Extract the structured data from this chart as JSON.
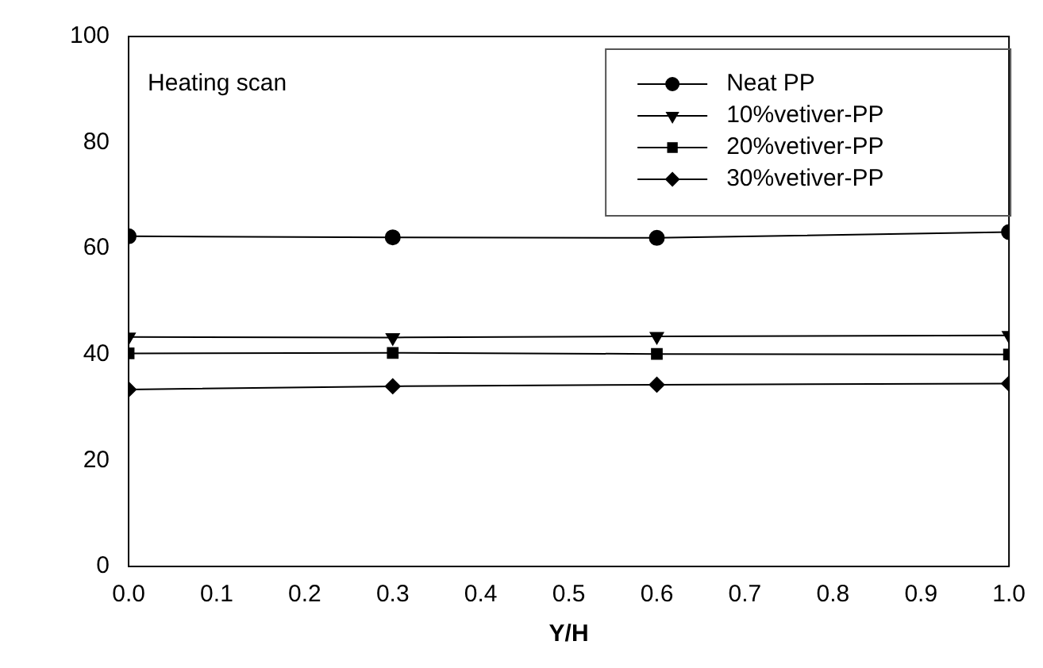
{
  "chart_data": {
    "type": "line",
    "xlabel": "Y/H",
    "annotations": [
      "Heating scan"
    ],
    "x": [
      0,
      0.3,
      0.6,
      1.0
    ],
    "series": [
      {
        "name": "Neat PP",
        "color": "#000000",
        "marker": "circle",
        "values": [
          62.3,
          62.1,
          62.0,
          63.1
        ]
      },
      {
        "name": "10%vetiver-PP",
        "color": "#000000",
        "marker": "triangle",
        "values": [
          43.3,
          43.2,
          43.4,
          43.6
        ]
      },
      {
        "name": "20%vetiver-PP",
        "color": "#000000",
        "marker": "square",
        "values": [
          40.2,
          40.3,
          40.1,
          40.0
        ]
      },
      {
        "name": "30%vetiver-PP",
        "color": "#000000",
        "marker": "diamond",
        "values": [
          33.4,
          34.0,
          34.3,
          34.5
        ]
      }
    ],
    "xlim": [
      0,
      1.0
    ],
    "xticks": [
      "0.0",
      0.1,
      0.2,
      0.3,
      0.4,
      0.5,
      0.6,
      0.7,
      0.8,
      0.9,
      "1.0"
    ],
    "ylim": [
      0,
      100
    ],
    "yticks": [
      0,
      20,
      40,
      60,
      80,
      100
    ],
    "grid": false,
    "legend": "top right",
    "line_style": "solid"
  }
}
